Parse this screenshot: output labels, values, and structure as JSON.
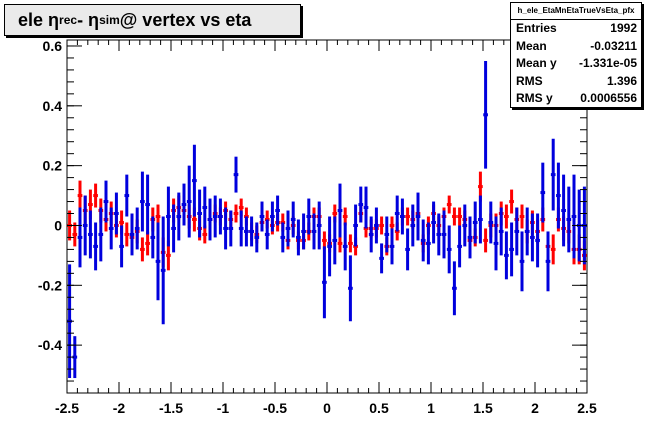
{
  "title": {
    "prefix": "ele η",
    "sub1": "rec",
    "middle": " - η",
    "sub2": "sim",
    "suffix": " @ vertex vs eta"
  },
  "stats": {
    "name": "h_ele_EtaMnEtaTrueVsEta_pfx",
    "rows": [
      {
        "label": "Entries",
        "value": "1992"
      },
      {
        "label": "Mean",
        "value": "-0.03211"
      },
      {
        "label": "Mean y",
        "value": "-1.331e-05"
      },
      {
        "label": "RMS",
        "value": "1.396"
      },
      {
        "label": "RMS y",
        "value": "0.0006556"
      }
    ]
  },
  "chart_data": {
    "type": "scatter",
    "title": "ele η_rec - η_sim @ vertex vs eta",
    "xlim": [
      -2.5,
      2.5
    ],
    "ylim": [
      -0.56,
      0.62
    ],
    "y_exponent_label": "×10⁻³",
    "x_ticks": [
      -2.5,
      -2,
      -1.5,
      -1,
      -0.5,
      0,
      0.5,
      1,
      1.5,
      2,
      2.5
    ],
    "x_tick_labels": [
      "-2.5",
      "-2",
      "-1.5",
      "-1",
      "-0.5",
      "0",
      "0.5",
      "1",
      "1.5",
      "2",
      "2.5"
    ],
    "y_ticks": [
      -0.4,
      -0.2,
      0,
      0.2,
      0.4,
      0.6
    ],
    "y_tick_labels": [
      "-0.4",
      "-0.2",
      "0",
      "0.2",
      "0.4",
      "0.6"
    ],
    "colors": {
      "red": "#ff0000",
      "blue": "#0000dd"
    },
    "series": [
      {
        "color": "red",
        "x": [
          -2.475,
          -2.425,
          -2.375,
          -2.325,
          -2.275,
          -2.225,
          -2.175,
          -2.125,
          -2.075,
          -2.025,
          -1.975,
          -1.925,
          -1.875,
          -1.825,
          -1.775,
          -1.725,
          -1.675,
          -1.625,
          -1.575,
          -1.525,
          -1.475,
          -1.425,
          -1.375,
          -1.325,
          -1.275,
          -1.225,
          -1.175,
          -1.125,
          -1.075,
          -1.025,
          -0.975,
          -0.925,
          -0.875,
          -0.825,
          -0.775,
          -0.725,
          -0.675,
          -0.625,
          -0.575,
          -0.525,
          -0.475,
          -0.425,
          -0.375,
          -0.325,
          -0.275,
          -0.225,
          -0.175,
          -0.125,
          -0.075,
          -0.025,
          0.025,
          0.075,
          0.125,
          0.175,
          0.225,
          0.275,
          0.325,
          0.375,
          0.425,
          0.475,
          0.525,
          0.575,
          0.625,
          0.675,
          0.725,
          0.775,
          0.825,
          0.875,
          0.925,
          0.975,
          1.025,
          1.075,
          1.125,
          1.175,
          1.225,
          1.275,
          1.325,
          1.375,
          1.425,
          1.475,
          1.525,
          1.575,
          1.625,
          1.675,
          1.725,
          1.775,
          1.825,
          1.875,
          1.925,
          1.975,
          2.025,
          2.075,
          2.125,
          2.175,
          2.225,
          2.275,
          2.325,
          2.375,
          2.425,
          2.475
        ],
        "y": [
          0.0,
          -0.03,
          0.1,
          0.05,
          0.07,
          0.1,
          0.05,
          0.02,
          0.04,
          0.0,
          0.01,
          -0.03,
          -0.04,
          -0.02,
          -0.08,
          -0.06,
          0.02,
          0.03,
          -0.09,
          -0.1,
          0.05,
          0.06,
          0.05,
          0.03,
          0.02,
          -0.01,
          -0.03,
          0.02,
          0.04,
          0.03,
          0.05,
          0.02,
          0.04,
          0.06,
          0.03,
          -0.02,
          -0.03,
          0.01,
          0.02,
          0.0,
          0.01,
          0.01,
          -0.05,
          0.0,
          -0.05,
          -0.05,
          -0.02,
          0.03,
          0.03,
          -0.05,
          -0.06,
          0.04,
          -0.06,
          0.03,
          -0.06,
          -0.07,
          0.04,
          -0.01,
          -0.01,
          -0.01,
          0.0,
          -0.07,
          0.0,
          -0.02,
          0.03,
          0.03,
          0.02,
          0.04,
          -0.06,
          0.0,
          0.04,
          0.0,
          0.03,
          0.07,
          0.03,
          0.03,
          0.02,
          -0.05,
          -0.04,
          0.13,
          -0.05,
          0.0,
          0.0,
          0.04,
          0.03,
          0.08,
          0.02,
          0.03,
          -0.02,
          0.01,
          -0.02,
          0.02,
          -0.07,
          -0.08,
          0.02,
          -0.01,
          -0.02,
          -0.08,
          -0.08,
          -0.1
        ],
        "err": [
          0.05,
          0.04,
          0.05,
          0.05,
          0.05,
          0.04,
          0.04,
          0.04,
          0.04,
          0.04,
          0.04,
          0.04,
          0.04,
          0.04,
          0.04,
          0.04,
          0.04,
          0.04,
          0.05,
          0.05,
          0.04,
          0.04,
          0.04,
          0.04,
          0.04,
          0.04,
          0.03,
          0.03,
          0.03,
          0.03,
          0.03,
          0.03,
          0.03,
          0.03,
          0.03,
          0.03,
          0.03,
          0.03,
          0.03,
          0.03,
          0.03,
          0.03,
          0.03,
          0.03,
          0.03,
          0.03,
          0.03,
          0.03,
          0.03,
          0.03,
          0.03,
          0.03,
          0.03,
          0.03,
          0.03,
          0.03,
          0.03,
          0.03,
          0.03,
          0.03,
          0.03,
          0.03,
          0.03,
          0.03,
          0.03,
          0.03,
          0.03,
          0.03,
          0.03,
          0.03,
          0.03,
          0.03,
          0.03,
          0.03,
          0.03,
          0.03,
          0.03,
          0.03,
          0.03,
          0.05,
          0.04,
          0.04,
          0.04,
          0.04,
          0.04,
          0.04,
          0.04,
          0.04,
          0.04,
          0.04,
          0.04,
          0.04,
          0.04,
          0.05,
          0.04,
          0.04,
          0.04,
          0.05,
          0.05,
          0.05
        ]
      },
      {
        "color": "blue",
        "x": [
          -2.475,
          -2.425,
          -2.375,
          -2.325,
          -2.275,
          -2.225,
          -2.175,
          -2.125,
          -2.075,
          -2.025,
          -1.975,
          -1.925,
          -1.875,
          -1.825,
          -1.775,
          -1.725,
          -1.675,
          -1.625,
          -1.575,
          -1.525,
          -1.475,
          -1.425,
          -1.375,
          -1.325,
          -1.275,
          -1.225,
          -1.175,
          -1.125,
          -1.075,
          -1.025,
          -0.975,
          -0.925,
          -0.875,
          -0.825,
          -0.775,
          -0.725,
          -0.675,
          -0.625,
          -0.575,
          -0.525,
          -0.475,
          -0.425,
          -0.375,
          -0.325,
          -0.275,
          -0.225,
          -0.175,
          -0.125,
          -0.075,
          -0.025,
          0.025,
          0.075,
          0.125,
          0.175,
          0.225,
          0.275,
          0.325,
          0.375,
          0.425,
          0.475,
          0.525,
          0.575,
          0.625,
          0.675,
          0.725,
          0.775,
          0.825,
          0.875,
          0.925,
          0.975,
          1.025,
          1.075,
          1.125,
          1.175,
          1.225,
          1.275,
          1.325,
          1.375,
          1.425,
          1.475,
          1.525,
          1.575,
          1.625,
          1.675,
          1.725,
          1.775,
          1.825,
          1.875,
          1.925,
          1.975,
          2.025,
          2.075,
          2.125,
          2.175,
          2.225,
          2.275,
          2.325,
          2.375,
          2.425,
          2.475
        ],
        "y": [
          -0.32,
          -0.44,
          -0.04,
          0.0,
          -0.03,
          -0.07,
          -0.03,
          0.08,
          -0.01,
          0.04,
          -0.07,
          0.1,
          -0.03,
          -0.01,
          0.08,
          0.07,
          -0.04,
          -0.12,
          -0.15,
          0.03,
          -0.01,
          0.03,
          0.07,
          0.08,
          0.15,
          0.04,
          0.06,
          0.02,
          0.03,
          0.03,
          -0.01,
          -0.01,
          0.17,
          -0.01,
          -0.02,
          -0.02,
          -0.04,
          0.03,
          -0.03,
          0.03,
          0.05,
          -0.04,
          -0.01,
          0.02,
          -0.04,
          -0.02,
          0.03,
          -0.02,
          0.0,
          -0.19,
          -0.07,
          -0.05,
          0.05,
          -0.07,
          -0.21,
          0.0,
          0.07,
          0.06,
          -0.03,
          0.0,
          -0.11,
          -0.03,
          -0.07,
          0.04,
          0.03,
          -0.08,
          0.0,
          0.03,
          -0.05,
          -0.06,
          0.01,
          -0.03,
          -0.03,
          -0.08,
          -0.21,
          -0.07,
          0.0,
          -0.04,
          0.01,
          0.02,
          0.37,
          0.01,
          -0.06,
          -0.02,
          -0.1,
          -0.08,
          -0.02,
          -0.12,
          -0.02,
          -0.04,
          -0.05,
          0.11,
          -0.12,
          0.17,
          0.1,
          0.05,
          0.02,
          0.03,
          0.0,
          0.0
        ],
        "err": [
          0.19,
          0.07,
          0.1,
          0.1,
          0.08,
          0.08,
          0.09,
          0.07,
          0.07,
          0.07,
          0.07,
          0.07,
          0.07,
          0.07,
          0.1,
          0.1,
          0.07,
          0.13,
          0.18,
          0.1,
          0.08,
          0.08,
          0.07,
          0.12,
          0.12,
          0.08,
          0.07,
          0.07,
          0.07,
          0.06,
          0.07,
          0.06,
          0.06,
          0.06,
          0.05,
          0.05,
          0.05,
          0.05,
          0.05,
          0.05,
          0.05,
          0.05,
          0.06,
          0.06,
          0.06,
          0.06,
          0.06,
          0.06,
          0.08,
          0.12,
          0.1,
          0.08,
          0.09,
          0.08,
          0.11,
          0.07,
          0.06,
          0.07,
          0.06,
          0.06,
          0.05,
          0.06,
          0.06,
          0.06,
          0.06,
          0.07,
          0.07,
          0.08,
          0.07,
          0.07,
          0.07,
          0.07,
          0.08,
          0.08,
          0.09,
          0.07,
          0.07,
          0.07,
          0.07,
          0.08,
          0.18,
          0.07,
          0.09,
          0.08,
          0.08,
          0.09,
          0.08,
          0.1,
          0.08,
          0.08,
          0.09,
          0.1,
          0.1,
          0.12,
          0.11,
          0.12,
          0.11,
          0.14,
          0.12,
          0.13
        ]
      }
    ]
  }
}
